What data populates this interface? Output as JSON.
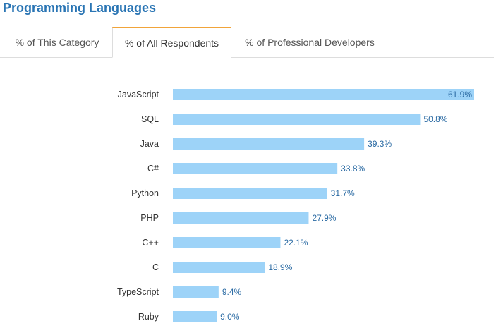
{
  "header": {
    "title": "Programming Languages"
  },
  "tabs": [
    {
      "label": "% of This Category",
      "active": false
    },
    {
      "label": "% of All Respondents",
      "active": true
    },
    {
      "label": "% of Professional Developers",
      "active": false
    }
  ],
  "colors": {
    "bar": "#9dd3f8",
    "title": "#2a75b4",
    "active_tab_accent": "#f1a43a",
    "value_label": "#2a6aa3"
  },
  "chart_data": {
    "type": "bar",
    "orientation": "horizontal",
    "categories": [
      "JavaScript",
      "SQL",
      "Java",
      "C#",
      "Python",
      "PHP",
      "C++",
      "C",
      "TypeScript",
      "Ruby"
    ],
    "values": [
      61.9,
      50.8,
      39.3,
      33.8,
      31.7,
      27.9,
      22.1,
      18.9,
      9.4,
      9.0
    ],
    "value_labels": [
      "61.9%",
      "50.8%",
      "39.3%",
      "33.8%",
      "31.7%",
      "27.9%",
      "22.1%",
      "18.9%",
      "9.4%",
      "9.0%"
    ],
    "xlim": [
      0,
      61.9
    ],
    "grid": false,
    "legend": "none"
  }
}
